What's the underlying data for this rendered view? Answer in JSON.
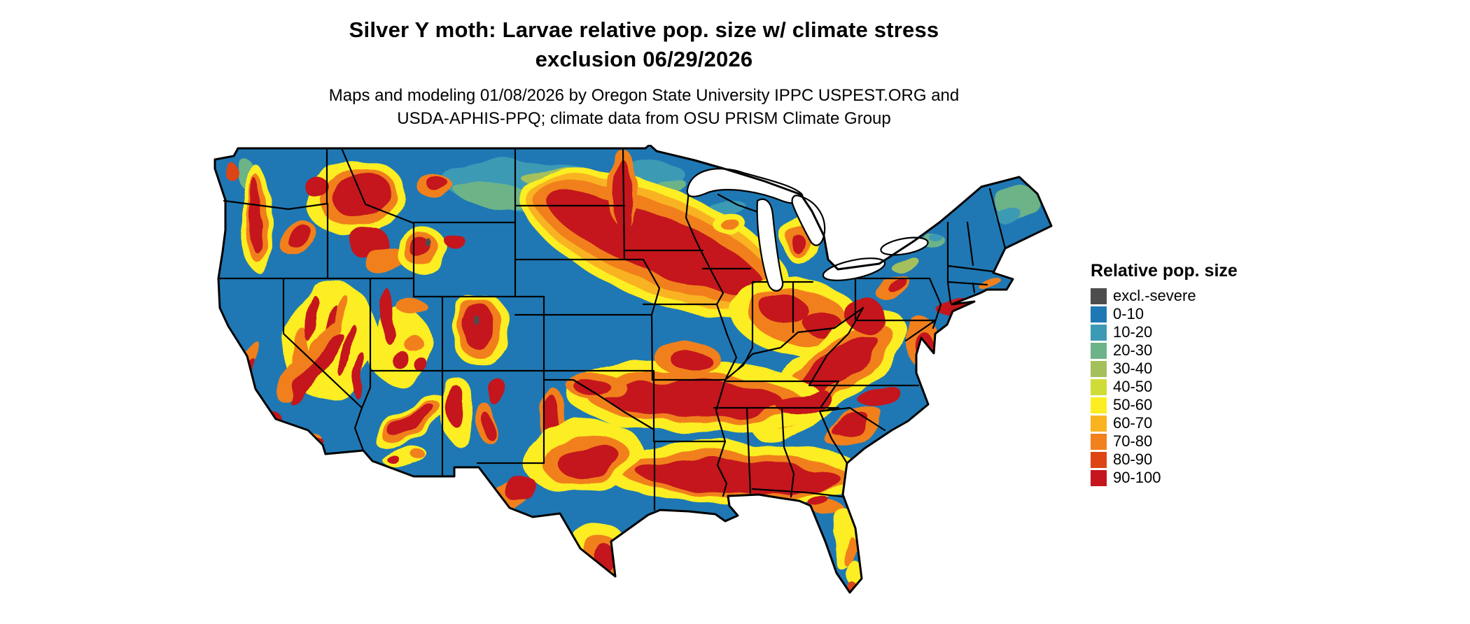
{
  "header": {
    "title_line1": "Silver Y moth: Larvae relative pop. size w/ climate stress",
    "title_line2": "exclusion 06/29/2026",
    "subtitle_line1": "Maps and modeling 01/08/2026 by Oregon State University IPPC USPEST.ORG and",
    "subtitle_line2": "USDA-APHIS-PPQ; climate data from OSU PRISM Climate Group"
  },
  "map": {
    "region": "Continental United States",
    "type": "raster choropleth of relative population size",
    "water_color": "#ffffff",
    "boundary_color": "#000000",
    "base_fill_class": "0-10"
  },
  "legend": {
    "title": "Relative pop. size",
    "entries": [
      {
        "label": "excl.-severe",
        "color": "#4d4d4d"
      },
      {
        "label": "0-10",
        "color": "#1f78b4"
      },
      {
        "label": "10-20",
        "color": "#3d9ab5"
      },
      {
        "label": "20-30",
        "color": "#6db388"
      },
      {
        "label": "30-40",
        "color": "#a4c05b"
      },
      {
        "label": "40-50",
        "color": "#cfdc35"
      },
      {
        "label": "50-60",
        "color": "#fcee21"
      },
      {
        "label": "60-70",
        "color": "#f9b321"
      },
      {
        "label": "70-80",
        "color": "#f1801f"
      },
      {
        "label": "80-90",
        "color": "#dd4514"
      },
      {
        "label": "90-100",
        "color": "#c4161c"
      }
    ]
  }
}
